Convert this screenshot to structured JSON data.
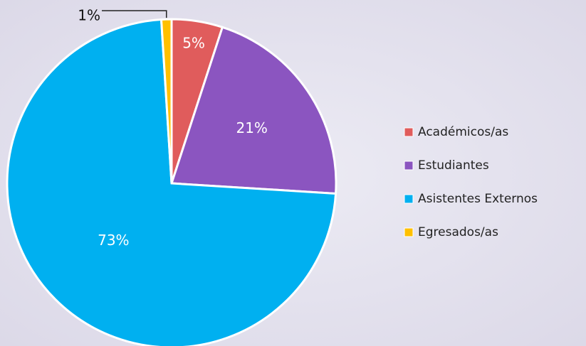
{
  "chart_data": {
    "type": "pie",
    "categories": [
      "Académicos/as",
      "Estudiantes",
      "Asistentes Externos",
      "Egresados/as"
    ],
    "values": [
      5,
      21,
      73,
      1
    ],
    "value_labels": [
      "5%",
      "21%",
      "73%",
      "1%"
    ],
    "colors": [
      "#e05c5c",
      "#8b55c0",
      "#00b0f0",
      "#ffc000"
    ],
    "legend": "right"
  }
}
